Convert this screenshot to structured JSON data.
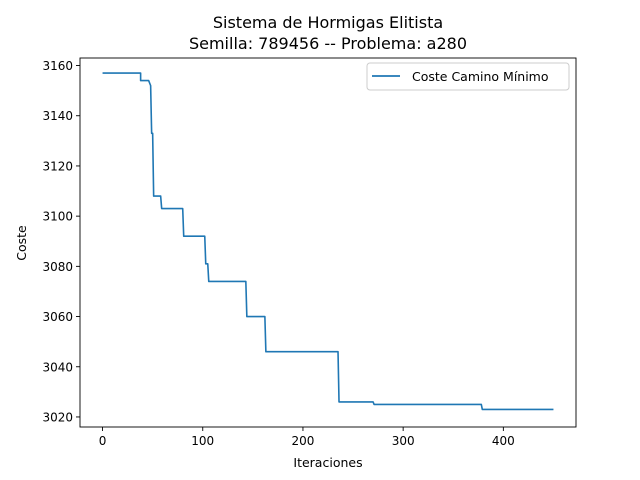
{
  "chart_data": {
    "type": "line",
    "title_lines": [
      "Sistema de Hormigas Elitista",
      "Semilla: 789456 -- Problema: a280"
    ],
    "xlabel": "Iteraciones",
    "ylabel": "Coste",
    "xlim": [
      -22.5,
      472.5
    ],
    "ylim": [
      3016,
      3163
    ],
    "xticks": [
      0,
      100,
      200,
      300,
      400
    ],
    "yticks": [
      3020,
      3040,
      3060,
      3080,
      3100,
      3120,
      3140,
      3160
    ],
    "grid": false,
    "legend_position": "top-right",
    "series": [
      {
        "name": "Coste Camino Mínimo",
        "color": "#1f77b4",
        "points": [
          [
            0,
            3157
          ],
          [
            38,
            3157
          ],
          [
            38,
            3154
          ],
          [
            46,
            3154
          ],
          [
            48,
            3152
          ],
          [
            49,
            3133
          ],
          [
            50,
            3133
          ],
          [
            51,
            3108
          ],
          [
            58,
            3108
          ],
          [
            59,
            3103
          ],
          [
            80,
            3103
          ],
          [
            81,
            3092
          ],
          [
            102,
            3092
          ],
          [
            103,
            3081
          ],
          [
            105,
            3081
          ],
          [
            106,
            3074
          ],
          [
            143,
            3074
          ],
          [
            144,
            3060
          ],
          [
            162,
            3060
          ],
          [
            163,
            3046
          ],
          [
            235,
            3046
          ],
          [
            236,
            3026
          ],
          [
            270,
            3026
          ],
          [
            271,
            3025
          ],
          [
            378,
            3025
          ],
          [
            379,
            3023
          ],
          [
            450,
            3023
          ]
        ]
      }
    ]
  }
}
